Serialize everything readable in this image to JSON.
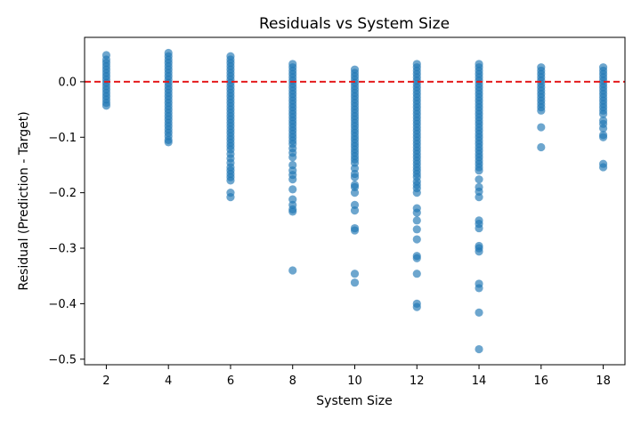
{
  "chart_data": {
    "type": "scatter",
    "title": "Residuals vs System Size",
    "xlabel": "System Size",
    "ylabel": "Residual (Prediction - Target)",
    "xlim": [
      1.3,
      18.7
    ],
    "ylim": [
      -0.51,
      0.08
    ],
    "xticks": [
      2,
      4,
      6,
      8,
      10,
      12,
      14,
      16,
      18
    ],
    "yticks": [
      0.0,
      -0.1,
      -0.2,
      -0.3,
      -0.4,
      -0.5
    ],
    "ytick_labels": [
      "0.0",
      "−0.1",
      "−0.2",
      "−0.3",
      "−0.4",
      "−0.5"
    ],
    "grid": false,
    "reference_line": {
      "y": 0.0,
      "color": "#e41a1c",
      "style": "dashed"
    },
    "point_color": "#1f77b4",
    "point_alpha": 0.65,
    "series": [
      {
        "points": [
          [
            2,
            0.048
          ],
          [
            2,
            0.04
          ],
          [
            2,
            0.034
          ],
          [
            2,
            0.028
          ],
          [
            2,
            0.022
          ],
          [
            2,
            0.016
          ],
          [
            2,
            0.01
          ],
          [
            2,
            0.004
          ],
          [
            2,
            -0.002
          ],
          [
            2,
            -0.008
          ],
          [
            2,
            -0.014
          ],
          [
            2,
            -0.02
          ],
          [
            2,
            -0.026
          ],
          [
            2,
            -0.032
          ],
          [
            2,
            -0.038
          ],
          [
            2,
            -0.043
          ],
          [
            4,
            0.052
          ],
          [
            4,
            0.046
          ],
          [
            4,
            0.04
          ],
          [
            4,
            0.034
          ],
          [
            4,
            0.028
          ],
          [
            4,
            0.022
          ],
          [
            4,
            0.016
          ],
          [
            4,
            0.01
          ],
          [
            4,
            0.004
          ],
          [
            4,
            -0.002
          ],
          [
            4,
            -0.008
          ],
          [
            4,
            -0.014
          ],
          [
            4,
            -0.02
          ],
          [
            4,
            -0.026
          ],
          [
            4,
            -0.032
          ],
          [
            4,
            -0.038
          ],
          [
            4,
            -0.044
          ],
          [
            4,
            -0.05
          ],
          [
            4,
            -0.056
          ],
          [
            4,
            -0.062
          ],
          [
            4,
            -0.068
          ],
          [
            4,
            -0.074
          ],
          [
            4,
            -0.08
          ],
          [
            4,
            -0.086
          ],
          [
            4,
            -0.092
          ],
          [
            4,
            -0.098
          ],
          [
            4,
            -0.105
          ],
          [
            4,
            -0.109
          ],
          [
            6,
            0.046
          ],
          [
            6,
            0.04
          ],
          [
            6,
            0.034
          ],
          [
            6,
            0.028
          ],
          [
            6,
            0.022
          ],
          [
            6,
            0.016
          ],
          [
            6,
            0.01
          ],
          [
            6,
            0.004
          ],
          [
            6,
            -0.002
          ],
          [
            6,
            -0.008
          ],
          [
            6,
            -0.014
          ],
          [
            6,
            -0.02
          ],
          [
            6,
            -0.026
          ],
          [
            6,
            -0.032
          ],
          [
            6,
            -0.038
          ],
          [
            6,
            -0.044
          ],
          [
            6,
            -0.05
          ],
          [
            6,
            -0.056
          ],
          [
            6,
            -0.062
          ],
          [
            6,
            -0.068
          ],
          [
            6,
            -0.074
          ],
          [
            6,
            -0.08
          ],
          [
            6,
            -0.086
          ],
          [
            6,
            -0.092
          ],
          [
            6,
            -0.098
          ],
          [
            6,
            -0.104
          ],
          [
            6,
            -0.11
          ],
          [
            6,
            -0.116
          ],
          [
            6,
            -0.122
          ],
          [
            6,
            -0.13
          ],
          [
            6,
            -0.138
          ],
          [
            6,
            -0.146
          ],
          [
            6,
            -0.154
          ],
          [
            6,
            -0.16
          ],
          [
            6,
            -0.166
          ],
          [
            6,
            -0.172
          ],
          [
            6,
            -0.178
          ],
          [
            6,
            -0.2
          ],
          [
            6,
            -0.208
          ],
          [
            8,
            0.032
          ],
          [
            8,
            0.026
          ],
          [
            8,
            0.02
          ],
          [
            8,
            0.014
          ],
          [
            8,
            0.008
          ],
          [
            8,
            0.002
          ],
          [
            8,
            -0.004
          ],
          [
            8,
            -0.01
          ],
          [
            8,
            -0.016
          ],
          [
            8,
            -0.022
          ],
          [
            8,
            -0.028
          ],
          [
            8,
            -0.034
          ],
          [
            8,
            -0.04
          ],
          [
            8,
            -0.046
          ],
          [
            8,
            -0.052
          ],
          [
            8,
            -0.058
          ],
          [
            8,
            -0.064
          ],
          [
            8,
            -0.07
          ],
          [
            8,
            -0.076
          ],
          [
            8,
            -0.082
          ],
          [
            8,
            -0.088
          ],
          [
            8,
            -0.094
          ],
          [
            8,
            -0.1
          ],
          [
            8,
            -0.106
          ],
          [
            8,
            -0.112
          ],
          [
            8,
            -0.12
          ],
          [
            8,
            -0.128
          ],
          [
            8,
            -0.136
          ],
          [
            8,
            -0.15
          ],
          [
            8,
            -0.16
          ],
          [
            8,
            -0.168
          ],
          [
            8,
            -0.176
          ],
          [
            8,
            -0.194
          ],
          [
            8,
            -0.212
          ],
          [
            8,
            -0.222
          ],
          [
            8,
            -0.23
          ],
          [
            8,
            -0.234
          ],
          [
            8,
            -0.34
          ],
          [
            10,
            0.022
          ],
          [
            10,
            0.016
          ],
          [
            10,
            0.01
          ],
          [
            10,
            0.004
          ],
          [
            10,
            -0.002
          ],
          [
            10,
            -0.008
          ],
          [
            10,
            -0.014
          ],
          [
            10,
            -0.02
          ],
          [
            10,
            -0.026
          ],
          [
            10,
            -0.032
          ],
          [
            10,
            -0.038
          ],
          [
            10,
            -0.044
          ],
          [
            10,
            -0.05
          ],
          [
            10,
            -0.056
          ],
          [
            10,
            -0.062
          ],
          [
            10,
            -0.068
          ],
          [
            10,
            -0.074
          ],
          [
            10,
            -0.08
          ],
          [
            10,
            -0.086
          ],
          [
            10,
            -0.092
          ],
          [
            10,
            -0.098
          ],
          [
            10,
            -0.104
          ],
          [
            10,
            -0.11
          ],
          [
            10,
            -0.116
          ],
          [
            10,
            -0.122
          ],
          [
            10,
            -0.128
          ],
          [
            10,
            -0.134
          ],
          [
            10,
            -0.14
          ],
          [
            10,
            -0.146
          ],
          [
            10,
            -0.156
          ],
          [
            10,
            -0.166
          ],
          [
            10,
            -0.172
          ],
          [
            10,
            -0.186
          ],
          [
            10,
            -0.19
          ],
          [
            10,
            -0.2
          ],
          [
            10,
            -0.222
          ],
          [
            10,
            -0.232
          ],
          [
            10,
            -0.264
          ],
          [
            10,
            -0.268
          ],
          [
            10,
            -0.346
          ],
          [
            10,
            -0.362
          ],
          [
            12,
            0.032
          ],
          [
            12,
            0.026
          ],
          [
            12,
            0.02
          ],
          [
            12,
            0.014
          ],
          [
            12,
            0.008
          ],
          [
            12,
            0.002
          ],
          [
            12,
            -0.004
          ],
          [
            12,
            -0.01
          ],
          [
            12,
            -0.016
          ],
          [
            12,
            -0.022
          ],
          [
            12,
            -0.028
          ],
          [
            12,
            -0.034
          ],
          [
            12,
            -0.04
          ],
          [
            12,
            -0.046
          ],
          [
            12,
            -0.052
          ],
          [
            12,
            -0.058
          ],
          [
            12,
            -0.064
          ],
          [
            12,
            -0.07
          ],
          [
            12,
            -0.076
          ],
          [
            12,
            -0.082
          ],
          [
            12,
            -0.088
          ],
          [
            12,
            -0.094
          ],
          [
            12,
            -0.1
          ],
          [
            12,
            -0.106
          ],
          [
            12,
            -0.112
          ],
          [
            12,
            -0.118
          ],
          [
            12,
            -0.124
          ],
          [
            12,
            -0.13
          ],
          [
            12,
            -0.136
          ],
          [
            12,
            -0.142
          ],
          [
            12,
            -0.148
          ],
          [
            12,
            -0.154
          ],
          [
            12,
            -0.16
          ],
          [
            12,
            -0.166
          ],
          [
            12,
            -0.172
          ],
          [
            12,
            -0.18
          ],
          [
            12,
            -0.186
          ],
          [
            12,
            -0.192
          ],
          [
            12,
            -0.2
          ],
          [
            12,
            -0.228
          ],
          [
            12,
            -0.236
          ],
          [
            12,
            -0.25
          ],
          [
            12,
            -0.266
          ],
          [
            12,
            -0.284
          ],
          [
            12,
            -0.314
          ],
          [
            12,
            -0.318
          ],
          [
            12,
            -0.346
          ],
          [
            12,
            -0.4
          ],
          [
            12,
            -0.406
          ],
          [
            14,
            0.032
          ],
          [
            14,
            0.026
          ],
          [
            14,
            0.02
          ],
          [
            14,
            0.014
          ],
          [
            14,
            0.008
          ],
          [
            14,
            0.002
          ],
          [
            14,
            -0.004
          ],
          [
            14,
            -0.01
          ],
          [
            14,
            -0.016
          ],
          [
            14,
            -0.022
          ],
          [
            14,
            -0.028
          ],
          [
            14,
            -0.034
          ],
          [
            14,
            -0.04
          ],
          [
            14,
            -0.046
          ],
          [
            14,
            -0.052
          ],
          [
            14,
            -0.058
          ],
          [
            14,
            -0.064
          ],
          [
            14,
            -0.07
          ],
          [
            14,
            -0.076
          ],
          [
            14,
            -0.082
          ],
          [
            14,
            -0.088
          ],
          [
            14,
            -0.094
          ],
          [
            14,
            -0.1
          ],
          [
            14,
            -0.106
          ],
          [
            14,
            -0.112
          ],
          [
            14,
            -0.118
          ],
          [
            14,
            -0.124
          ],
          [
            14,
            -0.13
          ],
          [
            14,
            -0.136
          ],
          [
            14,
            -0.142
          ],
          [
            14,
            -0.148
          ],
          [
            14,
            -0.154
          ],
          [
            14,
            -0.16
          ],
          [
            14,
            -0.176
          ],
          [
            14,
            -0.19
          ],
          [
            14,
            -0.198
          ],
          [
            14,
            -0.208
          ],
          [
            14,
            -0.25
          ],
          [
            14,
            -0.256
          ],
          [
            14,
            -0.264
          ],
          [
            14,
            -0.296
          ],
          [
            14,
            -0.3
          ],
          [
            14,
            -0.306
          ],
          [
            14,
            -0.364
          ],
          [
            14,
            -0.372
          ],
          [
            14,
            -0.416
          ],
          [
            14,
            -0.482
          ],
          [
            16,
            0.026
          ],
          [
            16,
            0.02
          ],
          [
            16,
            0.014
          ],
          [
            16,
            0.008
          ],
          [
            16,
            0.002
          ],
          [
            16,
            -0.004
          ],
          [
            16,
            -0.01
          ],
          [
            16,
            -0.016
          ],
          [
            16,
            -0.022
          ],
          [
            16,
            -0.028
          ],
          [
            16,
            -0.034
          ],
          [
            16,
            -0.04
          ],
          [
            16,
            -0.046
          ],
          [
            16,
            -0.052
          ],
          [
            16,
            -0.082
          ],
          [
            16,
            -0.118
          ],
          [
            18,
            0.026
          ],
          [
            18,
            0.02
          ],
          [
            18,
            0.014
          ],
          [
            18,
            0.008
          ],
          [
            18,
            0.002
          ],
          [
            18,
            -0.004
          ],
          [
            18,
            -0.01
          ],
          [
            18,
            -0.016
          ],
          [
            18,
            -0.022
          ],
          [
            18,
            -0.028
          ],
          [
            18,
            -0.034
          ],
          [
            18,
            -0.04
          ],
          [
            18,
            -0.046
          ],
          [
            18,
            -0.052
          ],
          [
            18,
            -0.058
          ],
          [
            18,
            -0.07
          ],
          [
            18,
            -0.076
          ],
          [
            18,
            -0.084
          ],
          [
            18,
            -0.096
          ],
          [
            18,
            -0.1
          ],
          [
            18,
            -0.148
          ],
          [
            18,
            -0.154
          ]
        ]
      }
    ]
  }
}
